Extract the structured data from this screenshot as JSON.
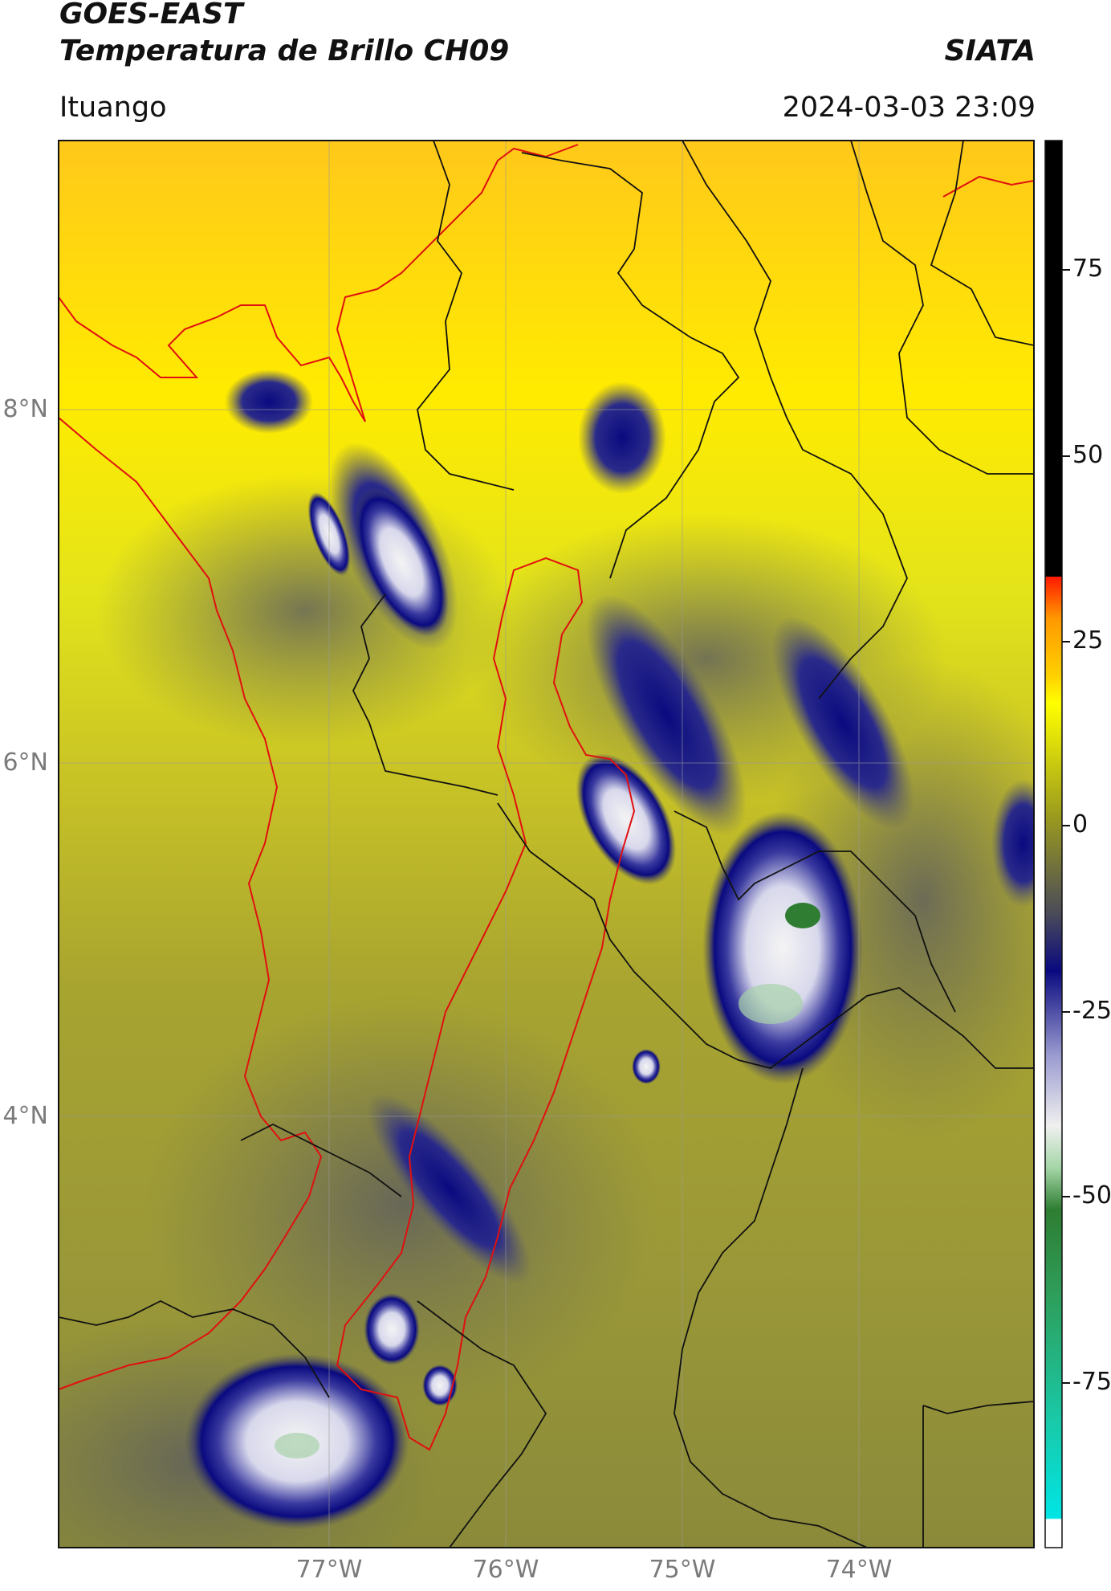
{
  "header": {
    "title_line1": "GOES-EAST",
    "title_line2": "Temperatura de Brillo CH09",
    "agency": "SIATA",
    "location": "Ituango",
    "datetime": "2024-03-03 23:09"
  },
  "map": {
    "lat_labels": [
      "8°N",
      "6°N",
      "4°N"
    ],
    "lon_labels": [
      "77°W",
      "76°W",
      "75°W",
      "74°W"
    ],
    "gridlines": true
  },
  "colorbar": {
    "ticks": [
      "75",
      "50",
      "25",
      "0",
      "-25",
      "-50",
      "-75"
    ],
    "colors": {
      "black": "#000000",
      "red": "#ff1a00",
      "orange": "#ff9900",
      "yellow": "#ffff00",
      "olive": "#9b9b1e",
      "gray": "#4a4a5a",
      "navy": "#0a0a80",
      "white": "#f0f0f0",
      "green": "#2e7d32",
      "teal": "#19c9a8",
      "cyan": "#00e5e5"
    }
  }
}
